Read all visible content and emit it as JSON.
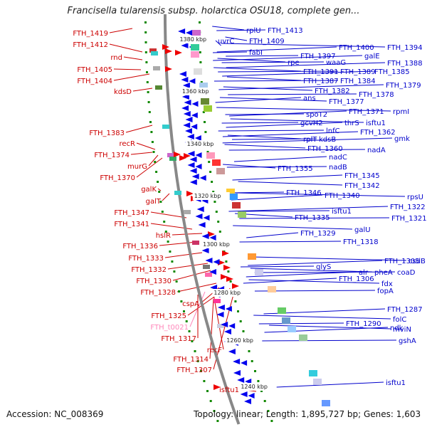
{
  "title": "Francisella tularensis subsp. holarctica OSU18, complete gen...",
  "footer": {
    "accession": "Accession: NC_008369",
    "summary": "Topology: linear; Length: 1,895,727 bp; Genes: 1,603"
  },
  "colors": {
    "left_label": "#cc0000",
    "left_label_pseudo": "#ff88bb",
    "right_label": "#0000cc",
    "backbone": "#888888",
    "forward_arrow": "#ee0000",
    "reverse_arrow": "#0000ee",
    "dots": "#118800"
  },
  "scale_labels": [
    "1380 kbp",
    "1360 kbp",
    "1340 kbp",
    "1320 kbp",
    "1300 kbp",
    "1280 kbp",
    "1260 kbp",
    "1240 kbp"
  ],
  "left_labels": [
    "FTH_1419",
    "FTH_1412",
    "rnd",
    "FTH_1405",
    "FTH_1404",
    "kdsD",
    "FTH_1383",
    "recR",
    "FTH_1374",
    "murG",
    "FTH_1370",
    "galK",
    "galT",
    "FTH_1347",
    "FTH_1341",
    "hslR",
    "FTH_1336",
    "FTH_1333",
    "FTH_1332",
    "FTH_1330",
    "FTH_1328",
    "cspA",
    "FTH_1325",
    "FTH_t0021",
    "FTH_1317",
    "recF",
    "FTH_1314",
    "FTH_1307",
    "isftu1"
  ],
  "right_labels": [
    "rplU",
    "FTH_1413",
    "uvrC",
    "FTH_1409",
    "fabI",
    "FTH_1400",
    "FTH_1394",
    "FTH_1397",
    "galE",
    "rpe",
    "waaG",
    "FTH_1388",
    "FTH_1391",
    "FTH_1389",
    "FTH_1385",
    "FTH_1387",
    "FTH_1384",
    "FTH_1379",
    "FTH_1382",
    "FTH_1378",
    "ans",
    "FTH_1377",
    "spoT2",
    "FTH_1371",
    "rpmI",
    "gcvH2",
    "thrS",
    "isftu1",
    "lnfC",
    "FTH_1362",
    "rplT",
    "kdsB",
    "gmk",
    "FTH_1360",
    "nadA",
    "nadC",
    "FTH_1355",
    "nadB",
    "FTH_1345",
    "FTH_1342",
    "FTH_1346",
    "FTH_1340",
    "rpsU",
    "isftu1",
    "FTH_1322",
    "FTH_1335",
    "FTH_1321",
    "FTH_1329",
    "galU",
    "FTH_1318",
    "FTH_1305",
    "csdB",
    "glyS",
    "alr",
    "pheA",
    "coaD",
    "FTH_1306",
    "fdx",
    "fopA",
    "FTH_1287",
    "folC",
    "FTH_1290",
    "ndk",
    "mviN",
    "gshA",
    "isftu1"
  ]
}
